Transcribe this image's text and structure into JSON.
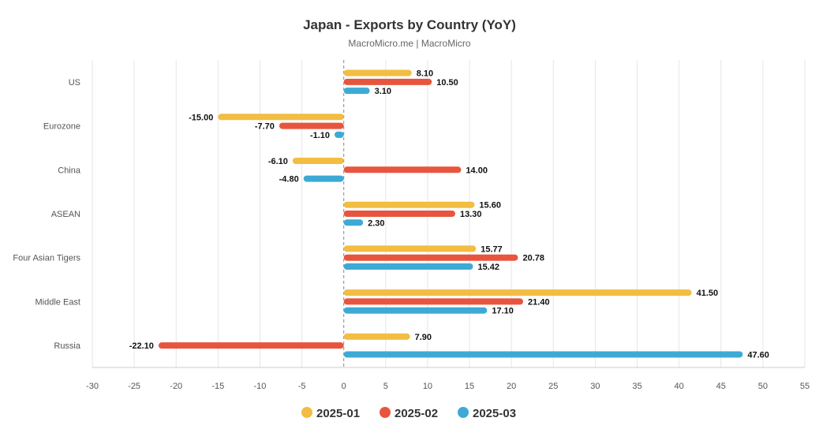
{
  "chart_data": {
    "type": "bar",
    "orientation": "horizontal",
    "title": "Japan - Exports by Country (YoY)",
    "subtitle": "MacroMicro.me | MacroMicro",
    "categories": [
      "US",
      "Eurozone",
      "China",
      "ASEAN",
      "Four Asian Tigers",
      "Middle East",
      "Russia"
    ],
    "series": [
      {
        "name": "2025-01",
        "color": "#f2bd42",
        "values": [
          8.1,
          -15.0,
          -6.1,
          15.6,
          15.77,
          41.5,
          7.9
        ]
      },
      {
        "name": "2025-02",
        "color": "#e8553e",
        "values": [
          10.5,
          -7.7,
          14.0,
          13.3,
          20.78,
          21.4,
          -22.1
        ]
      },
      {
        "name": "2025-03",
        "color": "#3daad6",
        "values": [
          3.1,
          -1.1,
          -4.8,
          2.3,
          15.42,
          17.1,
          47.6
        ]
      }
    ],
    "xlim": [
      -30,
      55
    ],
    "xticks": [
      -30,
      -25,
      -20,
      -15,
      -10,
      -5,
      0,
      5,
      10,
      15,
      20,
      25,
      30,
      35,
      40,
      45,
      50,
      55
    ],
    "grid": true,
    "legend": "bottom-center",
    "xlabel": "",
    "ylabel": ""
  }
}
